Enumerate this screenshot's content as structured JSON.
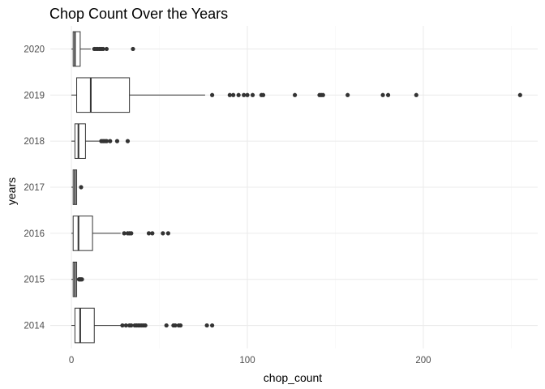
{
  "chart_data": {
    "type": "boxplot",
    "orientation": "horizontal",
    "title": "Chop Count Over the Years",
    "xlabel": "chop_count",
    "ylabel": "years",
    "xlim": [
      -12,
      265
    ],
    "x_ticks": [
      0,
      100,
      200
    ],
    "x_tick_labels": [
      "0",
      "100",
      "200"
    ],
    "grid": true,
    "categories": [
      "2014",
      "2015",
      "2016",
      "2017",
      "2018",
      "2019",
      "2020"
    ],
    "boxes": [
      {
        "category": "2014",
        "whisker_low": 0,
        "q1": 2,
        "median": 5,
        "q3": 13,
        "whisker_high": 28,
        "outliers": [
          29,
          31,
          33,
          34,
          36,
          37,
          38,
          39,
          40,
          41,
          42,
          54,
          58,
          59,
          61,
          62,
          77,
          80
        ]
      },
      {
        "category": "2015",
        "whisker_low": 0,
        "q1": 1,
        "median": 2,
        "q3": 3,
        "whisker_high": 4,
        "outliers": [
          4.3,
          4.6,
          5,
          5.5,
          6
        ]
      },
      {
        "category": "2016",
        "whisker_low": 0,
        "q1": 1,
        "median": 4,
        "q3": 12,
        "whisker_high": 28,
        "outliers": [
          30,
          32,
          33,
          34,
          44,
          46,
          52,
          55
        ]
      },
      {
        "category": "2017",
        "whisker_low": 0,
        "q1": 1,
        "median": 2,
        "q3": 3,
        "whisker_high": 3,
        "outliers": [
          5.5
        ]
      },
      {
        "category": "2018",
        "whisker_low": 0,
        "q1": 2,
        "median": 4,
        "q3": 8,
        "whisker_high": 16,
        "outliers": [
          17,
          18,
          19,
          20,
          22,
          26,
          32
        ]
      },
      {
        "category": "2019",
        "whisker_low": 0,
        "q1": 3,
        "median": 11,
        "q3": 33,
        "whisker_high": 76,
        "outliers": [
          80,
          90,
          92,
          95,
          98,
          100,
          103,
          108,
          109,
          127,
          141,
          142,
          143,
          157,
          177,
          180,
          196,
          255
        ]
      },
      {
        "category": "2020",
        "whisker_low": 0,
        "q1": 1,
        "median": 2,
        "q3": 5,
        "whisker_high": 11,
        "outliers": [
          13,
          14,
          15,
          16,
          17,
          18,
          20,
          35
        ]
      }
    ]
  }
}
